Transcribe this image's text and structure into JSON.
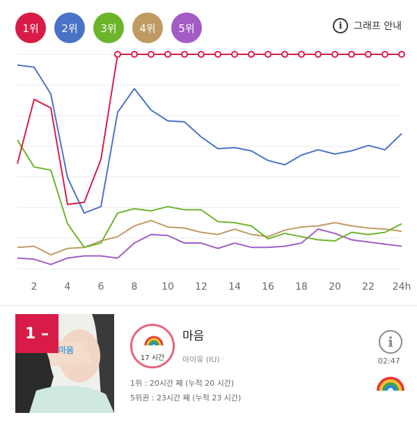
{
  "legend": [
    {
      "label": "1위",
      "color": "#d81b47"
    },
    {
      "label": "2위",
      "color": "#4a72c7"
    },
    {
      "label": "3위",
      "color": "#6cb52b"
    },
    {
      "label": "4위",
      "color": "#bf9a62"
    },
    {
      "label": "5위",
      "color": "#a25cc4"
    }
  ],
  "guide_label": "그래프 안내",
  "chart_data": {
    "type": "line",
    "x": [
      1,
      2,
      3,
      4,
      5,
      6,
      7,
      8,
      9,
      10,
      11,
      12,
      13,
      14,
      15,
      16,
      17,
      18,
      19,
      20,
      21,
      22,
      23,
      24
    ],
    "x_tick_labels": [
      "2",
      "4",
      "6",
      "8",
      "10",
      "12",
      "14",
      "16",
      "18",
      "20",
      "22",
      "24h"
    ],
    "x_tick_positions": [
      2,
      4,
      6,
      8,
      10,
      12,
      14,
      16,
      18,
      20,
      22,
      24
    ],
    "y_axis": "rank (inverted, unlabeled)",
    "grid": "horizontal",
    "series": [
      {
        "color": "#d81b47",
        "values": [
          58,
          118,
          110,
          20,
          22,
          62,
          160,
          160,
          160,
          160,
          160,
          160,
          160,
          160,
          160,
          160,
          160,
          160,
          160,
          160,
          160,
          160,
          160,
          160
        ],
        "markers_from_index": 6
      },
      {
        "color": "#4a72c7",
        "values": [
          150,
          148,
          123,
          45,
          12,
          18,
          106,
          128,
          108,
          98,
          97,
          83,
          72,
          73,
          70,
          61,
          57,
          66,
          71,
          67,
          70,
          75,
          71,
          86
        ]
      },
      {
        "color": "#6cb52b",
        "values": [
          80,
          55,
          52,
          2,
          -20,
          -16,
          12,
          16,
          14,
          18,
          15,
          15,
          4,
          3,
          0,
          -12,
          -7,
          -10,
          -13,
          -14,
          -6,
          -8,
          -6,
          2
        ]
      },
      {
        "color": "#bf9a62",
        "values": [
          -20,
          -19,
          -27,
          -21,
          -20,
          -14,
          -10,
          0,
          5,
          -1,
          -2,
          -6,
          -8,
          -3,
          -8,
          -10,
          -4,
          -1,
          0,
          3,
          0,
          -2,
          -3,
          -5
        ]
      },
      {
        "color": "#a25cc4",
        "values": [
          -30,
          -31,
          -36,
          -30,
          -28,
          -28,
          -30,
          -16,
          -8,
          -9,
          -16,
          -16,
          -21,
          -16,
          -20,
          -20,
          -19,
          -16,
          -3,
          -7,
          -13,
          -15,
          -17,
          -19
        ]
      }
    ]
  },
  "card": {
    "rank_badge": "1 –",
    "hours": "17 시간",
    "title": "마음",
    "artist": "아이유 (IU)",
    "stat1": "1위 : 20시간 째 (누적 20 시간)",
    "stat2": "5위권 : 23시간 째 (누적 23 시간)",
    "time": "02:47",
    "info_icon": "i"
  },
  "guide_icon": "i"
}
